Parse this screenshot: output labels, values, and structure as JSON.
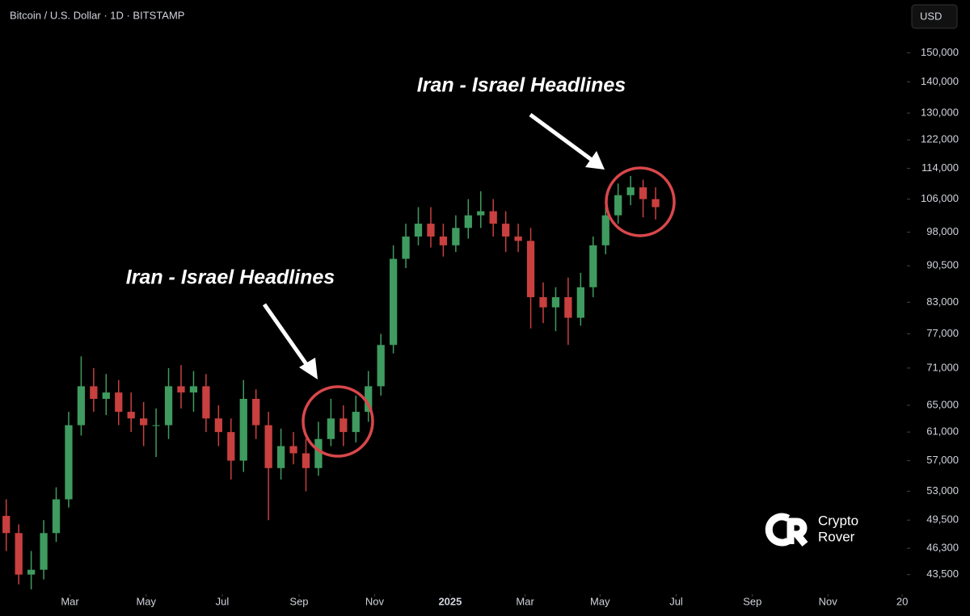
{
  "chart_data": {
    "type": "candlestick",
    "header": "Bitcoin / U.S. Dollar · 1D · BITSTAMP",
    "currency_button": "USD",
    "annotations": [
      "Iran - Israel Headlines",
      "Iran - Israel Headlines"
    ],
    "logo": [
      "Crypto",
      "Rover"
    ],
    "log_scale": true,
    "up_color": "#3f9b5f",
    "down_color": "#c8403f",
    "x": [
      10,
      30,
      50,
      70,
      90,
      110,
      130,
      150,
      170,
      190,
      210,
      230,
      250,
      270,
      290,
      310,
      330,
      350,
      370,
      390,
      410,
      430,
      450,
      470,
      490,
      510,
      530,
      550,
      570,
      590,
      610,
      630,
      650,
      670,
      690,
      710,
      730,
      750,
      770,
      790,
      810,
      830,
      850,
      870,
      890,
      910,
      930,
      950,
      970,
      990,
      1010,
      1030,
      1050
    ],
    "open": [
      50000,
      48000,
      43500,
      44000,
      48000,
      52000,
      62000,
      68000,
      66000,
      67000,
      64000,
      63000,
      62000,
      62000,
      68000,
      67000,
      68000,
      63000,
      61000,
      57000,
      66000,
      62000,
      56000,
      59000,
      58000,
      56000,
      60000,
      63000,
      61000,
      64000,
      68000,
      75000,
      92000,
      97000,
      100000,
      97000,
      95000,
      99000,
      102000,
      103000,
      100000,
      97000,
      96000,
      84000,
      82000,
      84000,
      80000,
      86000,
      95000,
      102000,
      107000,
      109000,
      106000
    ],
    "high": [
      52000,
      49000,
      46000,
      49500,
      53500,
      64000,
      73000,
      71000,
      70000,
      69000,
      67000,
      65500,
      64500,
      71000,
      71500,
      70500,
      70000,
      65000,
      63000,
      69000,
      67500,
      64000,
      61500,
      61000,
      60000,
      62500,
      66000,
      65000,
      66500,
      70500,
      77000,
      95000,
      100000,
      104000,
      104000,
      100000,
      102000,
      106000,
      108000,
      106000,
      103000,
      100000,
      99000,
      87000,
      86000,
      88000,
      89000,
      97000,
      104000,
      110000,
      112000,
      111000,
      109000
    ],
    "low": [
      46000,
      42500,
      42000,
      43000,
      47000,
      51000,
      60500,
      64000,
      63500,
      62000,
      61000,
      59000,
      57500,
      60000,
      64500,
      64000,
      61000,
      59000,
      54500,
      55500,
      60000,
      49500,
      54500,
      56500,
      53000,
      55000,
      59000,
      59000,
      59500,
      62500,
      66500,
      73500,
      90000,
      95000,
      94500,
      92500,
      93500,
      96500,
      99000,
      97000,
      93500,
      93500,
      78000,
      79000,
      77500,
      75000,
      78500,
      84000,
      93000,
      100000,
      104500,
      101500,
      101000
    ],
    "close": [
      48000,
      43500,
      44000,
      48000,
      52000,
      62000,
      68000,
      66000,
      67000,
      64000,
      63000,
      62000,
      62000,
      68000,
      67000,
      68000,
      63000,
      61000,
      57000,
      66000,
      62000,
      56000,
      59000,
      58000,
      56000,
      60000,
      63000,
      61000,
      64000,
      68000,
      75000,
      92000,
      97000,
      100000,
      97000,
      95000,
      99000,
      102000,
      103000,
      100000,
      97000,
      96000,
      84000,
      82000,
      84000,
      80000,
      86000,
      95000,
      102000,
      107000,
      109000,
      106000,
      104000
    ],
    "xlim": [
      0,
      1450
    ],
    "xticks": [
      {
        "value": 112,
        "label": "Mar"
      },
      {
        "value": 234,
        "label": "May"
      },
      {
        "value": 356,
        "label": "Jul"
      },
      {
        "value": 479,
        "label": "Sep"
      },
      {
        "value": 600,
        "label": "Nov"
      },
      {
        "value": 721,
        "label": "2025"
      },
      {
        "value": 841,
        "label": "Mar"
      },
      {
        "value": 961,
        "label": "May"
      },
      {
        "value": 1083,
        "label": "Jul"
      },
      {
        "value": 1205,
        "label": "Sep"
      },
      {
        "value": 1326,
        "label": "Nov"
      },
      {
        "value": 1445,
        "label": "20"
      }
    ],
    "ylim": [
      41600,
      170000
    ],
    "yticks": [
      {
        "value": 150000,
        "label": "150,000"
      },
      {
        "value": 140000,
        "label": "140,000"
      },
      {
        "value": 130000,
        "label": "130,000"
      },
      {
        "value": 122000,
        "label": "122,000"
      },
      {
        "value": 114000,
        "label": "114,000"
      },
      {
        "value": 106000,
        "label": "106,000"
      },
      {
        "value": 98000,
        "label": "98,000"
      },
      {
        "value": 90500,
        "label": "90,500"
      },
      {
        "value": 83000,
        "label": "83,000"
      },
      {
        "value": 77000,
        "label": "77,000"
      },
      {
        "value": 71000,
        "label": "71,000"
      },
      {
        "value": 65000,
        "label": "65,000"
      },
      {
        "value": 61000,
        "label": "61,000"
      },
      {
        "value": 57000,
        "label": "57,000"
      },
      {
        "value": 53000,
        "label": "53,000"
      },
      {
        "value": 49500,
        "label": "49,500"
      },
      {
        "value": 46300,
        "label": "46,300"
      },
      {
        "value": 43500,
        "label": "43,500"
      }
    ]
  }
}
